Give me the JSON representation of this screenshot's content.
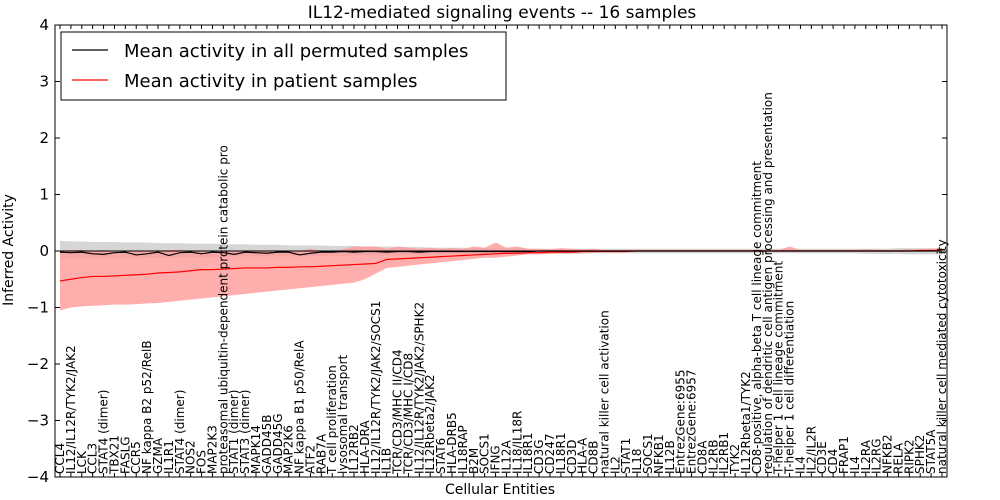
{
  "chart_data": {
    "type": "line",
    "title": "IL12-mediated signaling events -- 16 samples",
    "xlabel": "Cellular Entities",
    "ylabel": "Inferred Activity",
    "ylim": [
      -4,
      4
    ],
    "yticks": [
      -4,
      -3,
      -2,
      -1,
      0,
      1,
      2,
      3,
      4
    ],
    "legend": {
      "position": "top-left",
      "entries": [
        "Mean activity in all permuted samples",
        "Mean activity in patient samples"
      ]
    },
    "colors": {
      "permuted": "#000000",
      "patient": "#ff0000",
      "patient_band": "#ff9a9a",
      "permuted_band": "#c8c8c8"
    },
    "categories": [
      "CCL4",
      "IL12/IL12R/TYK2/JAK2",
      "LCK",
      "CCL3",
      "STAT4 (dimer)",
      "TBX21",
      "FASLG",
      "CCR5",
      "NF kappa B2 p52/RelB",
      "GZMA",
      "IL1R1",
      "STAT4 (dimer)",
      "NOS2",
      "FOS",
      "MAP2K3",
      "proteasomal ubiquitin-dependent protein catabolic pro",
      "STAT1 (dimer)",
      "STAT3 (dimer)",
      "MAPK14",
      "GADD45B",
      "GADD45G",
      "MAP2K6",
      "NF kappa B1 p50/RelA",
      "ATF2",
      "RAB7A",
      "T cell proliferation",
      "lysosomal transport",
      "IL12RB2",
      "HLA-DRA",
      "IL12/IL12R/TYK2/JAK2/SOCS1",
      "IL1B",
      "TCR/CD3/MHC II/CD4",
      "TCR/CD3/MHC I/CD8",
      "IL12/IL12R/TYK2/JAK2/SPHK2",
      "IL12Rbeta2/JAK2",
      "STAT6",
      "HLA-DRB5",
      "IL18RAP",
      "B2M",
      "SOCS1",
      "IFNG",
      "IL12A",
      "IL18/IL18R",
      "IL18R1",
      "CD3G",
      "CD247",
      "IL18R1",
      "CD3D",
      "HLA-A",
      "CD8B",
      "natural killer cell activation",
      "IL2",
      "STAT1",
      "IL18",
      "SOCS1",
      "NFKB1",
      "IL12B",
      "EntrezGene:6955",
      "EntrezGene:6957",
      "CD8A",
      "IL2RB",
      "IL2RB1",
      "TYK2",
      "IL12Rbeta1/TYK2",
      "CD8-positive, alpha-beta T cell lineage commitment",
      "regulation of dendritic cell antigen processing and presentation",
      "T-helper 1 cell lineage commitment",
      "T-helper 1 cell differentiation",
      "IL4",
      "IL2/IL2R",
      "CD3E",
      "CD4",
      "FRAP1",
      "IL4",
      "IL2RA",
      "IL2RG",
      "NFKB2",
      "RELA",
      "RIPK2",
      "SPHK2",
      "STAT5A",
      "natural killer cell mediated cytotoxicity"
    ],
    "series": [
      {
        "name": "Mean activity in all permuted samples",
        "values": [
          -0.02,
          -0.03,
          -0.02,
          -0.05,
          -0.06,
          -0.03,
          -0.02,
          -0.07,
          -0.05,
          -0.02,
          -0.08,
          -0.03,
          -0.02,
          -0.05,
          -0.02,
          -0.03,
          -0.06,
          -0.02,
          -0.03,
          -0.04,
          -0.02,
          -0.02,
          -0.07,
          -0.04,
          -0.02,
          -0.02,
          -0.01,
          -0.02,
          -0.01,
          -0.01,
          -0.02,
          -0.01,
          -0.01,
          -0.02,
          -0.01,
          -0.01,
          -0.01,
          -0.01,
          -0.01,
          -0.01,
          -0.01,
          -0.01,
          -0.01,
          -0.01,
          0,
          0,
          0,
          0,
          0,
          0,
          0,
          0,
          0,
          0,
          0,
          0,
          0,
          0,
          0,
          0,
          0,
          0,
          0,
          0,
          0,
          0,
          0,
          0,
          0,
          0,
          0,
          0,
          0,
          0,
          0,
          0,
          0,
          0,
          0,
          0,
          0,
          0
        ]
      },
      {
        "name": "Mean activity in patient samples",
        "values": [
          -0.53,
          -0.5,
          -0.47,
          -0.45,
          -0.45,
          -0.44,
          -0.43,
          -0.42,
          -0.41,
          -0.39,
          -0.38,
          -0.37,
          -0.35,
          -0.33,
          -0.33,
          -0.32,
          -0.31,
          -0.3,
          -0.3,
          -0.3,
          -0.29,
          -0.29,
          -0.28,
          -0.28,
          -0.27,
          -0.26,
          -0.25,
          -0.24,
          -0.23,
          -0.22,
          -0.15,
          -0.14,
          -0.13,
          -0.12,
          -0.11,
          -0.1,
          -0.09,
          -0.08,
          -0.07,
          -0.06,
          -0.05,
          -0.04,
          -0.04,
          -0.03,
          -0.03,
          -0.02,
          -0.02,
          -0.02,
          -0.01,
          -0.01,
          -0.01,
          -0.01,
          -0.01,
          0,
          0,
          0,
          0,
          0,
          0,
          0,
          0,
          0,
          0,
          0,
          0,
          0,
          0,
          0,
          0,
          0,
          0,
          0,
          0,
          0,
          0,
          0,
          0,
          0,
          0,
          0.01,
          0.01,
          0.01
        ]
      }
    ],
    "patient_band": {
      "lower": [
        -1.05,
        -1.0,
        -0.98,
        -0.97,
        -0.96,
        -0.95,
        -0.95,
        -0.94,
        -0.93,
        -0.92,
        -0.9,
        -0.88,
        -0.86,
        -0.84,
        -0.82,
        -0.8,
        -0.78,
        -0.76,
        -0.74,
        -0.72,
        -0.7,
        -0.68,
        -0.66,
        -0.64,
        -0.62,
        -0.6,
        -0.58,
        -0.56,
        -0.5,
        -0.4,
        -0.3,
        -0.28,
        -0.26,
        -0.24,
        -0.22,
        -0.2,
        -0.18,
        -0.16,
        -0.14,
        -0.12,
        -0.12,
        -0.1,
        -0.08,
        -0.06,
        -0.06,
        -0.05,
        -0.04,
        -0.04,
        -0.03,
        -0.03,
        -0.02,
        -0.02,
        -0.02,
        -0.01,
        -0.01,
        -0.01,
        -0.01,
        -0.01,
        -0.01,
        -0.01,
        -0.01,
        -0.01,
        -0.01,
        -0.01,
        -0.01,
        -0.01,
        -0.01,
        -0.01,
        -0.01,
        -0.01,
        -0.01,
        -0.01,
        -0.01,
        -0.01,
        -0.01,
        -0.01,
        -0.01,
        -0.01,
        -0.01,
        -0.01,
        -0.01,
        -0.01
      ],
      "upper": [
        0.0,
        0.02,
        0.02,
        0.0,
        0.02,
        -0.02,
        0.0,
        0.0,
        0.0,
        0.0,
        0.02,
        0.02,
        0.0,
        0.0,
        -0.04,
        0.0,
        0.0,
        0.0,
        0.0,
        0.0,
        0.0,
        0.0,
        0.0,
        0.04,
        0.0,
        0.0,
        0.03,
        0.08,
        0.08,
        0.08,
        0.04,
        0.08,
        0.06,
        0.04,
        0.06,
        0.04,
        0.05,
        0.04,
        0.08,
        0.06,
        0.15,
        0.06,
        0.08,
        0.04,
        0.04,
        0.03,
        0.05,
        0.04,
        0.03,
        0.04,
        0.02,
        0.02,
        0.02,
        0.02,
        0.02,
        0.02,
        0.02,
        0.02,
        0.02,
        0.02,
        0.02,
        0.02,
        0.02,
        0.02,
        0.02,
        0.02,
        0.02,
        0.08,
        0.02,
        0.02,
        0.02,
        0.02,
        0.02,
        0.02,
        0.03,
        0.02,
        0.02,
        0.02,
        0.03,
        0.03,
        0.04,
        0.05
      ]
    },
    "permuted_band": {
      "lower": [
        -0.14,
        -0.14,
        -0.13,
        -0.13,
        -0.13,
        -0.13,
        -0.13,
        -0.13,
        -0.12,
        -0.12,
        -0.12,
        -0.12,
        -0.11,
        -0.11,
        -0.11,
        -0.11,
        -0.1,
        -0.1,
        -0.1,
        -0.1,
        -0.1,
        -0.1,
        -0.1,
        -0.1,
        -0.09,
        -0.09,
        -0.09,
        -0.08,
        -0.08,
        -0.08,
        -0.08,
        -0.08,
        -0.07,
        -0.07,
        -0.07,
        -0.07,
        -0.06,
        -0.06,
        -0.06,
        -0.06,
        -0.05,
        -0.05,
        -0.05,
        -0.05,
        -0.05,
        -0.05,
        -0.05,
        -0.05,
        -0.05,
        -0.04,
        -0.04,
        -0.04,
        -0.04,
        -0.04,
        -0.04,
        -0.04,
        -0.04,
        -0.04,
        -0.04,
        -0.04,
        -0.04,
        -0.04,
        -0.04,
        -0.04,
        -0.04,
        -0.04,
        -0.04,
        -0.04,
        -0.04,
        -0.04,
        -0.04,
        -0.04,
        -0.04,
        -0.04,
        -0.05,
        -0.05,
        -0.05,
        -0.05,
        -0.06,
        -0.06,
        -0.06,
        -0.06
      ],
      "upper": [
        0.18,
        0.17,
        0.17,
        0.16,
        0.16,
        0.16,
        0.15,
        0.15,
        0.15,
        0.14,
        0.14,
        0.14,
        0.13,
        0.13,
        0.13,
        0.12,
        0.12,
        0.12,
        0.11,
        0.11,
        0.11,
        0.1,
        0.1,
        0.1,
        0.1,
        0.09,
        0.09,
        0.09,
        0.08,
        0.08,
        0.08,
        0.07,
        0.07,
        0.07,
        0.06,
        0.06,
        0.06,
        0.06,
        0.05,
        0.05,
        0.05,
        0.05,
        0.05,
        0.04,
        0.04,
        0.04,
        0.04,
        0.04,
        0.04,
        0.04,
        0.04,
        0.04,
        0.04,
        0.04,
        0.04,
        0.04,
        0.04,
        0.04,
        0.04,
        0.04,
        0.04,
        0.04,
        0.04,
        0.04,
        0.04,
        0.04,
        0.04,
        0.04,
        0.04,
        0.04,
        0.04,
        0.04,
        0.04,
        0.04,
        0.04,
        0.04,
        0.04,
        0.05,
        0.05,
        0.05,
        0.05,
        0.05
      ]
    }
  }
}
